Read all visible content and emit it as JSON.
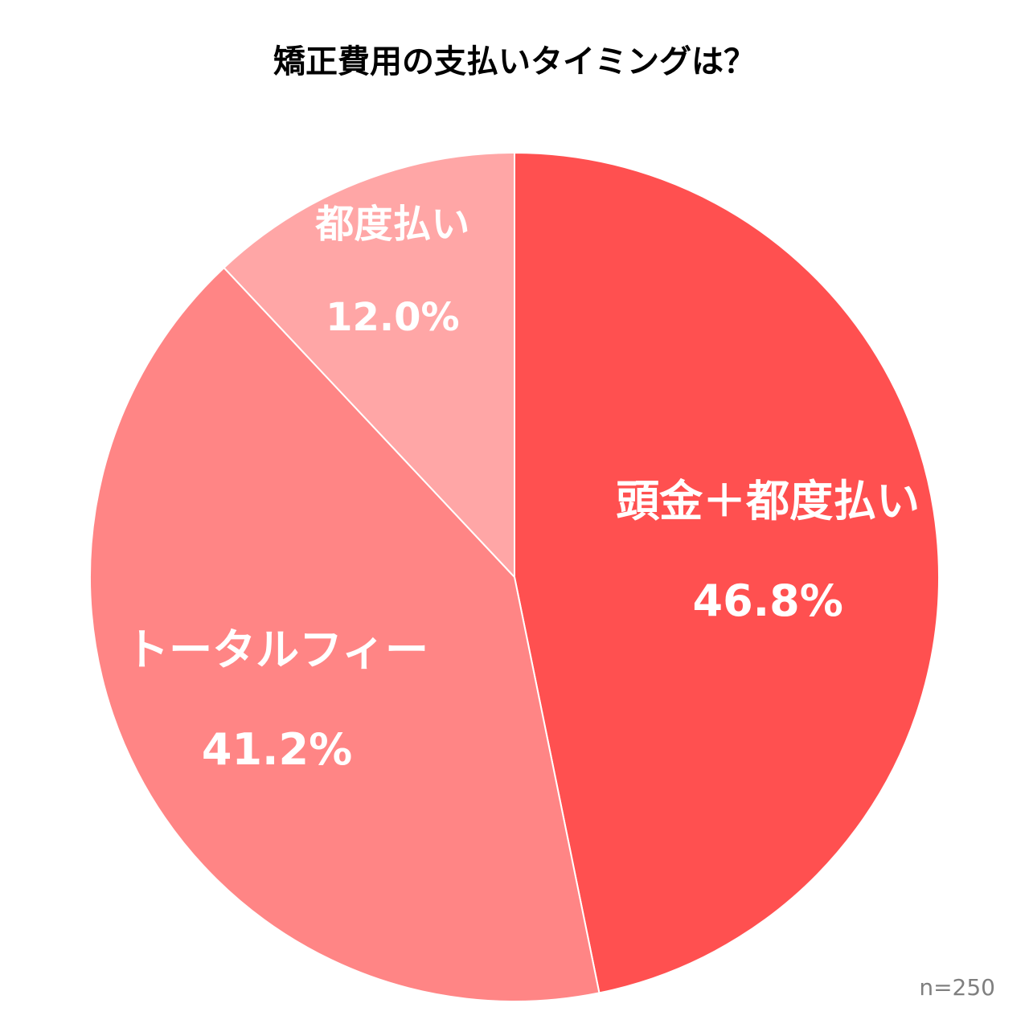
{
  "chart_data": {
    "type": "pie",
    "title": "矯正費用の支払いタイミングは？",
    "sample_size": "n=250",
    "start_angle_deg": 0,
    "direction": "clockwise",
    "slices": [
      {
        "name": "頭金＋都度払い",
        "value": 46.8,
        "label": "46.8%",
        "color": "#ff5050"
      },
      {
        "name": "トータルフィー",
        "value": 41.2,
        "label": "41.2%",
        "color": "#ff8585"
      },
      {
        "name": "都度払い",
        "value": 12.0,
        "label": "12.0%",
        "color": "#ffa6a6"
      }
    ],
    "slice_border_color": "#ffffff"
  }
}
